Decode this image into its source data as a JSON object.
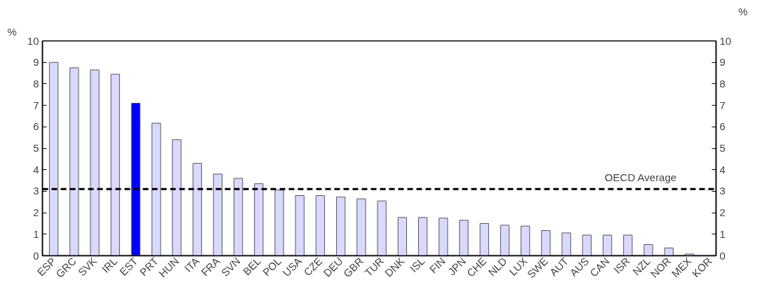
{
  "chart_data": {
    "type": "bar",
    "ylabel": "%",
    "y2label": "%",
    "categories": [
      "ESP",
      "GRC",
      "SVK",
      "IRL",
      "EST",
      "PRT",
      "HUN",
      "ITA",
      "FRA",
      "SVN",
      "BEL",
      "POL",
      "USA",
      "CZE",
      "DEU",
      "GBR",
      "TUR",
      "DNK",
      "ISL",
      "FIN",
      "JPN",
      "CHE",
      "NLD",
      "LUX",
      "SWE",
      "AUT",
      "AUS",
      "CAN",
      "ISR",
      "NZL",
      "NOR",
      "MEX",
      "KOR"
    ],
    "values": [
      9.0,
      8.75,
      8.65,
      8.45,
      7.1,
      6.17,
      5.4,
      4.3,
      3.8,
      3.6,
      3.35,
      3.05,
      2.8,
      2.8,
      2.73,
      2.65,
      2.55,
      1.78,
      1.78,
      1.75,
      1.65,
      1.5,
      1.42,
      1.38,
      1.17,
      1.06,
      0.96,
      0.96,
      0.96,
      0.52,
      0.36,
      0.08,
      null
    ],
    "colors": [
      "#d9d9ff",
      "#d9d9ff",
      "#d9d9ff",
      "#d9d9ff",
      "#0000ff",
      "#d9d9ff",
      "#d9d9ff",
      "#d9d9ff",
      "#d9d9ff",
      "#d9d9ff",
      "#d9d9ff",
      "#d9d9ff",
      "#d9d9ff",
      "#d9d9ff",
      "#d9d9ff",
      "#d9d9ff",
      "#d9d9ff",
      "#d9d9ff",
      "#d9d9ff",
      "#d9d9ff",
      "#d9d9ff",
      "#d9d9ff",
      "#d9d9ff",
      "#d9d9ff",
      "#d9d9ff",
      "#d9d9ff",
      "#d9d9ff",
      "#d9d9ff",
      "#d9d9ff",
      "#d9d9ff",
      "#d9d9ff",
      "#d9d9ff",
      "#d9d9ff"
    ],
    "ylim": [
      0,
      10
    ],
    "yticks": [
      0,
      1,
      2,
      3,
      4,
      5,
      6,
      7,
      8,
      9,
      10
    ],
    "y2lim": [
      0,
      10
    ],
    "y2ticks": [
      0,
      1,
      2,
      3,
      4,
      5,
      6,
      7,
      8,
      9,
      10
    ],
    "ref_lines": [
      {
        "axis": "y",
        "value": 3.1,
        "label": "OECD Average",
        "color": "#000000",
        "line_style": "dashed"
      }
    ],
    "grid": false
  }
}
